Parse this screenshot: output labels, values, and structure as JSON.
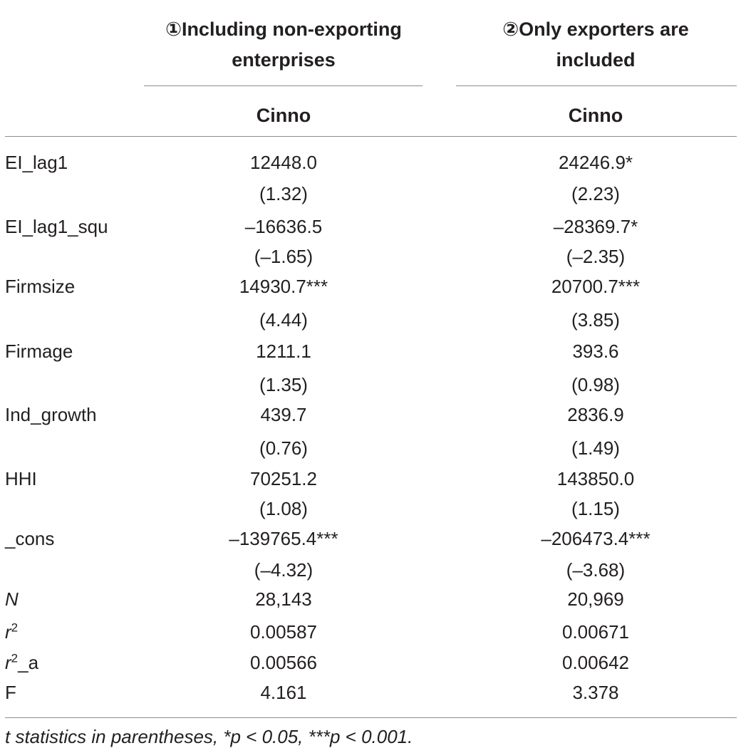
{
  "columns": [
    {
      "line1": "①Including non-exporting",
      "line2": "enterprises",
      "sub": "Cinno"
    },
    {
      "line1": "②Only exporters are",
      "line2": "included",
      "sub": "Cinno"
    }
  ],
  "rows": [
    {
      "label": "EI_lag1",
      "c1": "12448.0",
      "c2": "24246.9*"
    },
    {
      "label": "",
      "c1": "(1.32)",
      "c2": "(2.23)"
    },
    {
      "label": "EI_lag1_squ",
      "c1": "–16636.5",
      "c2": "–28369.7*"
    },
    {
      "label": "",
      "c1": "(–1.65)",
      "c2": "(–2.35)"
    },
    {
      "label": "Firmsize",
      "c1": "14930.7***",
      "c2": "20700.7***"
    },
    {
      "label": "",
      "c1": "(4.44)",
      "c2": "(3.85)"
    },
    {
      "label": "Firmage",
      "c1": "1211.1",
      "c2": "393.6"
    },
    {
      "label": "",
      "c1": "(1.35)",
      "c2": "(0.98)"
    },
    {
      "label": "Ind_growth",
      "c1": "439.7",
      "c2": "2836.9"
    },
    {
      "label": "",
      "c1": "(0.76)",
      "c2": "(1.49)"
    },
    {
      "label": "HHI",
      "c1": "70251.2",
      "c2": "143850.0"
    },
    {
      "label": "",
      "c1": "(1.08)",
      "c2": "(1.15)"
    },
    {
      "label": "_cons",
      "c1": "–139765.4***",
      "c2": "–206473.4***"
    },
    {
      "label": "",
      "c1": "(–4.32)",
      "c2": "(–3.68)"
    }
  ],
  "stats": {
    "n": {
      "label": "N",
      "c1": "28,143",
      "c2": "20,969"
    },
    "r2": {
      "label_base": "r",
      "label_sup": "2",
      "c1": "0.00587",
      "c2": "0.00671"
    },
    "r2a": {
      "label_base": "r",
      "label_sup": "2",
      "label_suffix": "_a",
      "c1": "0.00566",
      "c2": "0.00642"
    },
    "f": {
      "label": "F",
      "c1": "4.161",
      "c2": "3.378"
    }
  },
  "footnote": "t statistics in parentheses, *p < 0.05, ***p < 0.001."
}
